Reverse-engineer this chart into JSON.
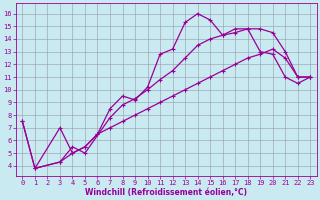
{
  "background_color": "#c8eaf0",
  "grid_color": "#9999aa",
  "line_color": "#990099",
  "marker": "+",
  "markersize": 3.5,
  "linewidth": 0.9,
  "xlabel": "Windchill (Refroidissement éolien,°C)",
  "xlabel_color": "#990099",
  "xlabel_fontsize": 5.5,
  "tick_fontsize": 5.0,
  "tick_color": "#990099",
  "xlim": [
    -0.5,
    23.5
  ],
  "ylim": [
    3.2,
    16.8
  ],
  "xticks": [
    0,
    1,
    2,
    3,
    4,
    5,
    6,
    7,
    8,
    9,
    10,
    11,
    12,
    13,
    14,
    15,
    16,
    17,
    18,
    19,
    20,
    21,
    22,
    23
  ],
  "yticks": [
    4,
    5,
    6,
    7,
    8,
    9,
    10,
    11,
    12,
    13,
    14,
    15,
    16
  ],
  "line1_x": [
    0,
    1,
    3,
    4,
    5,
    6,
    7,
    8,
    9,
    10,
    11,
    12,
    13,
    14,
    15,
    16,
    17,
    18,
    19,
    20,
    21,
    22,
    23
  ],
  "line1_y": [
    7.5,
    3.8,
    7.0,
    5.0,
    5.5,
    6.5,
    8.5,
    9.5,
    9.2,
    10.2,
    12.8,
    13.2,
    15.3,
    16.0,
    15.5,
    14.3,
    14.8,
    14.8,
    13.0,
    12.8,
    11.0,
    10.5,
    11.0
  ],
  "line2_x": [
    0,
    1,
    3,
    4,
    5,
    7,
    8,
    9,
    10,
    11,
    12,
    13,
    14,
    15,
    16,
    17,
    18,
    19,
    20,
    21,
    22,
    23
  ],
  "line2_y": [
    7.5,
    3.8,
    4.3,
    5.5,
    5.0,
    7.8,
    8.8,
    9.3,
    10.0,
    10.8,
    11.5,
    12.5,
    13.5,
    14.0,
    14.3,
    14.5,
    14.8,
    14.8,
    14.5,
    13.0,
    11.0,
    11.0
  ],
  "line3_x": [
    1,
    3,
    4,
    5,
    6,
    7,
    8,
    9,
    10,
    11,
    12,
    13,
    14,
    15,
    16,
    17,
    18,
    19,
    20,
    21,
    22,
    23
  ],
  "line3_y": [
    3.8,
    4.3,
    5.0,
    5.5,
    6.5,
    7.0,
    7.5,
    8.0,
    8.5,
    9.0,
    9.5,
    10.0,
    10.5,
    11.0,
    11.5,
    12.0,
    12.5,
    12.8,
    13.2,
    12.5,
    11.0,
    11.0
  ]
}
